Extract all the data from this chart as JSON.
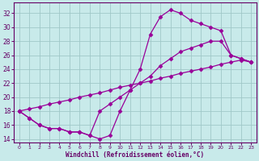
{
  "xlabel": "Windchill (Refroidissement éolien,°C)",
  "ylabel": "",
  "bg_color": "#c8eaea",
  "line_color": "#990099",
  "grid_color": "#a0c8c8",
  "axis_color": "#660066",
  "text_color": "#660066",
  "xlim": [
    -0.5,
    23.5
  ],
  "ylim": [
    13.5,
    33.5
  ],
  "xticks": [
    0,
    1,
    2,
    3,
    4,
    5,
    6,
    7,
    8,
    9,
    10,
    11,
    12,
    13,
    14,
    15,
    16,
    17,
    18,
    19,
    20,
    21,
    22,
    23
  ],
  "yticks": [
    14,
    16,
    18,
    20,
    22,
    24,
    26,
    28,
    30,
    32
  ],
  "line1_x": [
    0,
    1,
    2,
    3,
    4,
    5,
    6,
    7,
    8,
    9,
    10,
    11,
    12,
    13,
    14,
    15,
    16,
    17,
    18,
    19,
    20,
    21,
    22,
    23
  ],
  "line1_y": [
    18,
    17,
    16,
    15.5,
    15.5,
    15,
    15,
    14.5,
    14,
    14.5,
    18,
    21,
    24,
    29,
    31.5,
    32.5,
    32,
    31,
    30.5,
    30,
    29.5,
    26,
    25.5,
    25
  ],
  "line2_x": [
    0,
    1,
    2,
    3,
    4,
    5,
    6,
    7,
    8,
    9,
    10,
    11,
    12,
    13,
    14,
    15,
    16,
    17,
    18,
    19,
    20,
    21,
    22,
    23
  ],
  "line2_y": [
    18,
    17,
    16,
    15.5,
    15.5,
    15,
    15,
    14.5,
    18,
    19,
    20,
    21,
    22,
    23,
    24.5,
    25.5,
    26.5,
    27,
    27.5,
    28,
    28,
    26,
    25.5,
    25
  ],
  "line3_x": [
    0,
    1,
    2,
    3,
    4,
    5,
    6,
    7,
    8,
    9,
    10,
    11,
    12,
    13,
    14,
    15,
    16,
    17,
    18,
    19,
    20,
    21,
    22,
    23
  ],
  "line3_y": [
    18,
    18.3,
    18.6,
    19,
    19.3,
    19.6,
    20,
    20.3,
    20.6,
    21,
    21.4,
    21.7,
    22,
    22.3,
    22.7,
    23,
    23.4,
    23.7,
    24,
    24.3,
    24.7,
    25,
    25.3,
    25
  ]
}
